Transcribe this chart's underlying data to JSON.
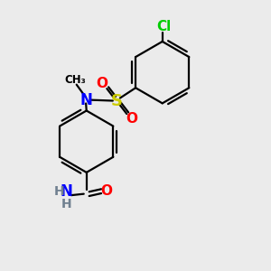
{
  "background_color": "#ebebeb",
  "bond_color": "#000000",
  "atom_colors": {
    "N": "#0000ff",
    "O": "#ff0000",
    "S": "#cccc00",
    "Cl": "#00cc00",
    "C": "#000000",
    "H": "#708090"
  },
  "figsize": [
    3.0,
    3.0
  ],
  "dpi": 100,
  "lw": 1.6
}
